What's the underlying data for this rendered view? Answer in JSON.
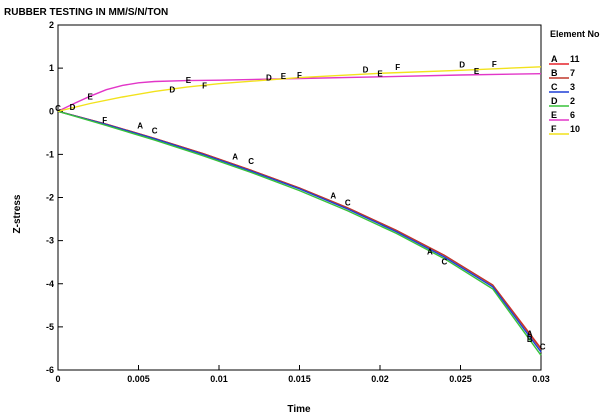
{
  "chart_data": {
    "type": "line",
    "title": "RUBBER TESTING IN MM/S/N/TON",
    "xlabel": "Time",
    "ylabel": "Z-stress",
    "xlim": [
      0,
      0.03
    ],
    "ylim": [
      -6,
      2
    ],
    "x_ticks": [
      0,
      0.005,
      0.01,
      0.015,
      0.02,
      0.025,
      0.03
    ],
    "x_tick_labels": [
      "0",
      "0.005",
      "0.01",
      "0.015",
      "0.02",
      "0.025",
      "0.03"
    ],
    "y_ticks": [
      -6,
      -5,
      -4,
      -3,
      -2,
      -1,
      0,
      1,
      2
    ],
    "y_tick_labels": [
      "-6",
      "-5",
      "-4",
      "-3",
      "-2",
      "-1",
      "0",
      "1",
      "2"
    ],
    "grid": false,
    "legend_title": "Element No",
    "legend_position": "right",
    "series": [
      {
        "letter": "A",
        "element": "11",
        "color": "#e6232c",
        "x": [
          0,
          0.003,
          0.006,
          0.009,
          0.012,
          0.015,
          0.018,
          0.021,
          0.024,
          0.027,
          0.03
        ],
        "y": [
          0,
          -0.3,
          -0.63,
          -0.98,
          -1.37,
          -1.78,
          -2.24,
          -2.76,
          -3.34,
          -4.03,
          -5.5
        ]
      },
      {
        "letter": "B",
        "element": "7",
        "color": "#c0392b",
        "x": [
          0,
          0.003,
          0.006,
          0.009,
          0.012,
          0.015,
          0.018,
          0.021,
          0.024,
          0.027,
          0.03
        ],
        "y": [
          0,
          -0.3,
          -0.63,
          -0.98,
          -1.37,
          -1.78,
          -2.24,
          -2.76,
          -3.34,
          -4.03,
          -5.52
        ]
      },
      {
        "letter": "C",
        "element": "3",
        "color": "#1f3fd6",
        "x": [
          0,
          0.003,
          0.006,
          0.009,
          0.012,
          0.015,
          0.018,
          0.021,
          0.024,
          0.027,
          0.03
        ],
        "y": [
          0,
          -0.31,
          -0.64,
          -1.0,
          -1.39,
          -1.8,
          -2.27,
          -2.79,
          -3.38,
          -4.07,
          -5.58
        ]
      },
      {
        "letter": "D",
        "element": "2",
        "color": "#39c23a",
        "x": [
          0,
          0.003,
          0.006,
          0.009,
          0.012,
          0.015,
          0.018,
          0.021,
          0.024,
          0.027,
          0.03
        ],
        "y": [
          0,
          -0.33,
          -0.67,
          -1.03,
          -1.42,
          -1.84,
          -2.31,
          -2.83,
          -3.42,
          -4.12,
          -5.66
        ]
      },
      {
        "letter": "E",
        "element": "6",
        "color": "#e236c8",
        "x": [
          0,
          0.001,
          0.002,
          0.003,
          0.004,
          0.005,
          0.006,
          0.008,
          0.01,
          0.015,
          0.02,
          0.025,
          0.03
        ],
        "y": [
          0,
          0.18,
          0.35,
          0.5,
          0.6,
          0.66,
          0.69,
          0.71,
          0.72,
          0.76,
          0.8,
          0.84,
          0.87
        ]
      },
      {
        "letter": "F",
        "element": "10",
        "color": "#f2e21c",
        "x": [
          0,
          0.002,
          0.004,
          0.006,
          0.008,
          0.01,
          0.015,
          0.02,
          0.025,
          0.03
        ],
        "y": [
          0,
          0.18,
          0.33,
          0.46,
          0.56,
          0.64,
          0.78,
          0.88,
          0.95,
          1.03
        ]
      }
    ],
    "markers": [
      {
        "letter": "C",
        "x": 0.0,
        "y": 0.07
      },
      {
        "letter": "D",
        "x": 0.0009,
        "y": 0.1
      },
      {
        "letter": "E",
        "x": 0.002,
        "y": 0.34
      },
      {
        "letter": "F",
        "x": 0.0029,
        "y": -0.2
      },
      {
        "letter": "A",
        "x": 0.0051,
        "y": -0.33
      },
      {
        "letter": "C",
        "x": 0.006,
        "y": -0.45
      },
      {
        "letter": "D",
        "x": 0.0071,
        "y": 0.5
      },
      {
        "letter": "E",
        "x": 0.0081,
        "y": 0.73
      },
      {
        "letter": "F",
        "x": 0.0091,
        "y": 0.6
      },
      {
        "letter": "A",
        "x": 0.011,
        "y": -1.05
      },
      {
        "letter": "C",
        "x": 0.012,
        "y": -1.15
      },
      {
        "letter": "D",
        "x": 0.0131,
        "y": 0.78
      },
      {
        "letter": "E",
        "x": 0.014,
        "y": 0.82
      },
      {
        "letter": "F",
        "x": 0.015,
        "y": 0.84
      },
      {
        "letter": "A",
        "x": 0.0171,
        "y": -1.95
      },
      {
        "letter": "C",
        "x": 0.018,
        "y": -2.12
      },
      {
        "letter": "D",
        "x": 0.0191,
        "y": 0.97
      },
      {
        "letter": "E",
        "x": 0.02,
        "y": 0.88
      },
      {
        "letter": "F",
        "x": 0.0211,
        "y": 1.03
      },
      {
        "letter": "A",
        "x": 0.0231,
        "y": -3.25
      },
      {
        "letter": "C",
        "x": 0.024,
        "y": -3.48
      },
      {
        "letter": "D",
        "x": 0.0251,
        "y": 1.08
      },
      {
        "letter": "E",
        "x": 0.026,
        "y": 0.93
      },
      {
        "letter": "F",
        "x": 0.0271,
        "y": 1.1
      },
      {
        "letter": "A",
        "x": 0.0293,
        "y": -5.15
      },
      {
        "letter": "B",
        "x": 0.0293,
        "y": -5.28
      },
      {
        "letter": "C",
        "x": 0.0301,
        "y": -5.45
      }
    ]
  }
}
